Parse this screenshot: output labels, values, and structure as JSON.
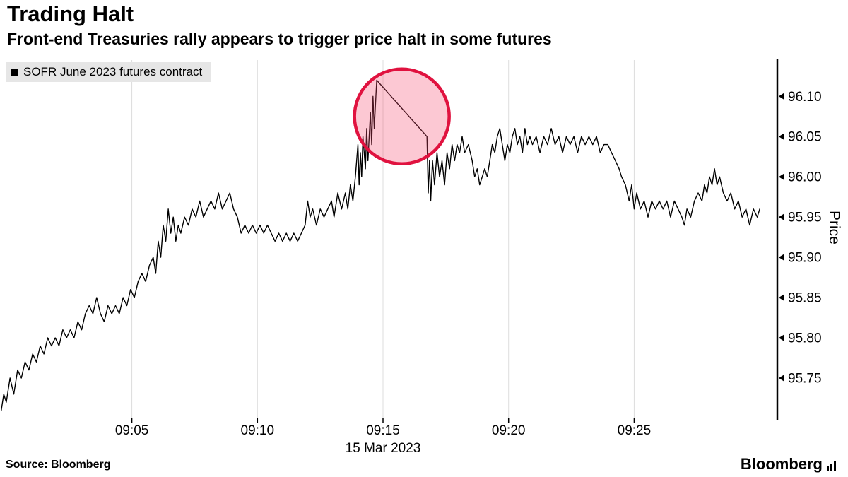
{
  "header": {
    "title": "Trading Halt",
    "subtitle": "Front-end Treasuries rally appears to trigger price halt in some futures"
  },
  "legend": {
    "series_label": "SOFR June 2023 futures contract",
    "marker_color": "#000000",
    "background": "#e6e6e6"
  },
  "footer": {
    "source_label": "Source: Bloomberg",
    "brand_label": "Bloomberg"
  },
  "chart_data": {
    "type": "line",
    "title": "Trading Halt",
    "subtitle": "Front-end Treasuries rally appears to trigger price halt in some futures",
    "x_axis": {
      "date_label": "15 Mar 2023",
      "unit": "minutes after 09:00",
      "xlim": [
        -0.25,
        30.7
      ],
      "ticks": [
        {
          "t": 5,
          "label": "09:05"
        },
        {
          "t": 10,
          "label": "09:10"
        },
        {
          "t": 15,
          "label": "09:15"
        },
        {
          "t": 20,
          "label": "09:20"
        },
        {
          "t": 25,
          "label": "09:25"
        }
      ]
    },
    "y_axis": {
      "label": "Price",
      "ylim": [
        95.7,
        96.145
      ],
      "ticks": [
        96.1,
        96.05,
        96.0,
        95.95,
        95.9,
        95.85,
        95.8,
        95.75
      ]
    },
    "grid": {
      "vertical": true,
      "horizontal": false,
      "vertical_color": "#dcdcdc"
    },
    "annotation": {
      "type": "circle",
      "meaning": "highlights spike and flat-line caused by price halt",
      "center_t": 15.75,
      "center_price": 96.075,
      "radius_px": 67,
      "stroke_color": "#e0123f",
      "fill_color": "#f4496e",
      "fill_opacity": 0.3
    },
    "series": [
      {
        "name": "SOFR June 2023 futures contract",
        "color": "#000000",
        "points": [
          [
            -0.2,
            95.71
          ],
          [
            -0.1,
            95.73
          ],
          [
            0,
            95.72
          ],
          [
            0.15,
            95.75
          ],
          [
            0.3,
            95.73
          ],
          [
            0.45,
            95.76
          ],
          [
            0.6,
            95.75
          ],
          [
            0.75,
            95.77
          ],
          [
            0.9,
            95.76
          ],
          [
            1.05,
            95.78
          ],
          [
            1.2,
            95.77
          ],
          [
            1.35,
            95.79
          ],
          [
            1.5,
            95.78
          ],
          [
            1.65,
            95.8
          ],
          [
            1.8,
            95.79
          ],
          [
            1.95,
            95.8
          ],
          [
            2.1,
            95.79
          ],
          [
            2.25,
            95.81
          ],
          [
            2.4,
            95.8
          ],
          [
            2.55,
            95.81
          ],
          [
            2.7,
            95.8
          ],
          [
            2.85,
            95.82
          ],
          [
            3.0,
            95.81
          ],
          [
            3.15,
            95.83
          ],
          [
            3.3,
            95.84
          ],
          [
            3.45,
            95.83
          ],
          [
            3.6,
            95.85
          ],
          [
            3.75,
            95.83
          ],
          [
            3.9,
            95.82
          ],
          [
            4.05,
            95.84
          ],
          [
            4.2,
            95.83
          ],
          [
            4.35,
            95.84
          ],
          [
            4.5,
            95.83
          ],
          [
            4.65,
            95.85
          ],
          [
            4.8,
            95.84
          ],
          [
            4.95,
            95.86
          ],
          [
            5.1,
            95.85
          ],
          [
            5.25,
            95.87
          ],
          [
            5.4,
            95.88
          ],
          [
            5.55,
            95.87
          ],
          [
            5.7,
            95.89
          ],
          [
            5.85,
            95.9
          ],
          [
            5.95,
            95.88
          ],
          [
            6.05,
            95.92
          ],
          [
            6.15,
            95.9
          ],
          [
            6.25,
            95.94
          ],
          [
            6.35,
            95.92
          ],
          [
            6.45,
            95.96
          ],
          [
            6.55,
            95.93
          ],
          [
            6.65,
            95.95
          ],
          [
            6.75,
            95.92
          ],
          [
            6.85,
            95.94
          ],
          [
            6.95,
            95.93
          ],
          [
            7.1,
            95.95
          ],
          [
            7.25,
            95.94
          ],
          [
            7.4,
            95.96
          ],
          [
            7.55,
            95.95
          ],
          [
            7.7,
            95.97
          ],
          [
            7.85,
            95.95
          ],
          [
            8.0,
            95.96
          ],
          [
            8.15,
            95.97
          ],
          [
            8.3,
            95.96
          ],
          [
            8.45,
            95.98
          ],
          [
            8.6,
            95.96
          ],
          [
            8.75,
            95.97
          ],
          [
            8.9,
            95.98
          ],
          [
            9.05,
            95.96
          ],
          [
            9.2,
            95.95
          ],
          [
            9.35,
            95.93
          ],
          [
            9.5,
            95.94
          ],
          [
            9.65,
            95.93
          ],
          [
            9.8,
            95.94
          ],
          [
            9.95,
            95.93
          ],
          [
            10.1,
            95.94
          ],
          [
            10.25,
            95.93
          ],
          [
            10.4,
            95.94
          ],
          [
            10.55,
            95.93
          ],
          [
            10.7,
            95.92
          ],
          [
            10.85,
            95.93
          ],
          [
            11.0,
            95.92
          ],
          [
            11.15,
            95.93
          ],
          [
            11.3,
            95.92
          ],
          [
            11.45,
            95.93
          ],
          [
            11.6,
            95.92
          ],
          [
            11.75,
            95.93
          ],
          [
            11.9,
            95.94
          ],
          [
            12.0,
            95.97
          ],
          [
            12.1,
            95.95
          ],
          [
            12.2,
            95.96
          ],
          [
            12.35,
            95.94
          ],
          [
            12.5,
            95.96
          ],
          [
            12.65,
            95.95
          ],
          [
            12.8,
            95.96
          ],
          [
            12.95,
            95.97
          ],
          [
            13.05,
            95.95
          ],
          [
            13.2,
            95.98
          ],
          [
            13.35,
            95.96
          ],
          [
            13.5,
            95.98
          ],
          [
            13.6,
            95.96
          ],
          [
            13.7,
            95.99
          ],
          [
            13.8,
            95.97
          ],
          [
            13.9,
            96.0
          ],
          [
            14.0,
            96.04
          ],
          [
            14.05,
            95.99
          ],
          [
            14.1,
            96.03
          ],
          [
            14.15,
            96.0
          ],
          [
            14.2,
            96.05
          ],
          [
            14.3,
            96.01
          ],
          [
            14.35,
            96.06
          ],
          [
            14.4,
            96.02
          ],
          [
            14.5,
            96.08
          ],
          [
            14.55,
            96.04
          ],
          [
            14.6,
            96.1
          ],
          [
            14.65,
            96.06
          ],
          [
            14.75,
            96.12
          ],
          [
            16.75,
            96.05
          ],
          [
            16.8,
            95.98
          ],
          [
            16.85,
            96.02
          ],
          [
            16.9,
            95.97
          ],
          [
            16.97,
            96.02
          ],
          [
            17.05,
            95.99
          ],
          [
            17.15,
            96.03
          ],
          [
            17.25,
            96.0
          ],
          [
            17.35,
            96.02
          ],
          [
            17.45,
            95.99
          ],
          [
            17.55,
            96.03
          ],
          [
            17.65,
            96.01
          ],
          [
            17.75,
            96.04
          ],
          [
            17.85,
            96.02
          ],
          [
            17.95,
            96.04
          ],
          [
            18.05,
            96.03
          ],
          [
            18.15,
            96.05
          ],
          [
            18.25,
            96.03
          ],
          [
            18.4,
            96.04
          ],
          [
            18.55,
            96.02
          ],
          [
            18.65,
            96.0
          ],
          [
            18.75,
            96.01
          ],
          [
            18.85,
            95.99
          ],
          [
            18.95,
            96.0
          ],
          [
            19.05,
            96.01
          ],
          [
            19.15,
            96.0
          ],
          [
            19.25,
            96.02
          ],
          [
            19.35,
            96.04
          ],
          [
            19.45,
            96.03
          ],
          [
            19.55,
            96.05
          ],
          [
            19.65,
            96.06
          ],
          [
            19.75,
            96.04
          ],
          [
            19.85,
            96.02
          ],
          [
            19.95,
            96.04
          ],
          [
            20.05,
            96.03
          ],
          [
            20.15,
            96.05
          ],
          [
            20.25,
            96.06
          ],
          [
            20.35,
            96.04
          ],
          [
            20.45,
            96.05
          ],
          [
            20.55,
            96.03
          ],
          [
            20.65,
            96.06
          ],
          [
            20.75,
            96.04
          ],
          [
            20.85,
            96.05
          ],
          [
            20.95,
            96.04
          ],
          [
            21.1,
            96.05
          ],
          [
            21.25,
            96.03
          ],
          [
            21.4,
            96.05
          ],
          [
            21.55,
            96.04
          ],
          [
            21.7,
            96.06
          ],
          [
            21.85,
            96.04
          ],
          [
            22.0,
            96.05
          ],
          [
            22.15,
            96.03
          ],
          [
            22.3,
            96.05
          ],
          [
            22.45,
            96.04
          ],
          [
            22.6,
            96.05
          ],
          [
            22.75,
            96.03
          ],
          [
            22.9,
            96.05
          ],
          [
            23.05,
            96.04
          ],
          [
            23.2,
            96.05
          ],
          [
            23.35,
            96.04
          ],
          [
            23.5,
            96.05
          ],
          [
            23.65,
            96.03
          ],
          [
            23.8,
            96.04
          ],
          [
            23.95,
            96.04
          ],
          [
            24.1,
            96.03
          ],
          [
            24.25,
            96.02
          ],
          [
            24.4,
            96.01
          ],
          [
            24.5,
            96.0
          ],
          [
            24.65,
            95.99
          ],
          [
            24.8,
            95.97
          ],
          [
            24.9,
            95.99
          ],
          [
            25.0,
            95.96
          ],
          [
            25.1,
            95.98
          ],
          [
            25.25,
            95.96
          ],
          [
            25.4,
            95.97
          ],
          [
            25.55,
            95.95
          ],
          [
            25.7,
            95.97
          ],
          [
            25.85,
            95.96
          ],
          [
            26.0,
            95.97
          ],
          [
            26.15,
            95.96
          ],
          [
            26.3,
            95.97
          ],
          [
            26.45,
            95.95
          ],
          [
            26.6,
            95.97
          ],
          [
            26.75,
            95.96
          ],
          [
            26.9,
            95.95
          ],
          [
            27.0,
            95.94
          ],
          [
            27.1,
            95.96
          ],
          [
            27.25,
            95.95
          ],
          [
            27.4,
            95.97
          ],
          [
            27.55,
            95.98
          ],
          [
            27.7,
            95.97
          ],
          [
            27.8,
            95.99
          ],
          [
            27.9,
            95.98
          ],
          [
            28.0,
            96.0
          ],
          [
            28.1,
            95.99
          ],
          [
            28.2,
            96.01
          ],
          [
            28.3,
            95.99
          ],
          [
            28.4,
            96.0
          ],
          [
            28.55,
            95.98
          ],
          [
            28.7,
            95.97
          ],
          [
            28.85,
            95.98
          ],
          [
            29.0,
            95.96
          ],
          [
            29.15,
            95.97
          ],
          [
            29.3,
            95.95
          ],
          [
            29.45,
            95.96
          ],
          [
            29.6,
            95.94
          ],
          [
            29.75,
            95.96
          ],
          [
            29.9,
            95.95
          ],
          [
            30.0,
            95.96
          ]
        ]
      }
    ]
  }
}
